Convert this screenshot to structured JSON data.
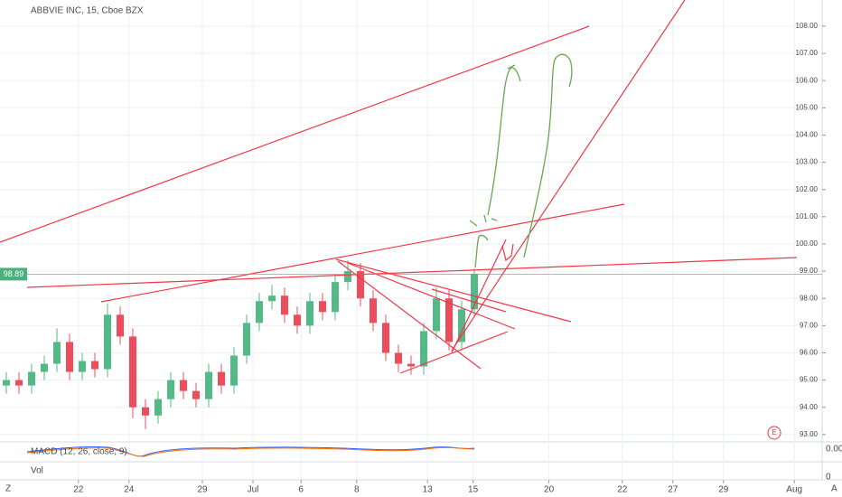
{
  "chart_data": {
    "type": "candlestick",
    "title": "ABBVIE INC, 15, Cboe BZX",
    "x": [
      0.25,
      0.75,
      1.25,
      1.75,
      2.25,
      2.75,
      3.25,
      3.75,
      4.25,
      4.75,
      5.25,
      5.75,
      6.25,
      6.75,
      7.25,
      7.75,
      8.25,
      8.75,
      9.25,
      9.75,
      10.25,
      10.75,
      11.25,
      11.75,
      12.25,
      12.75,
      13.25,
      13.75,
      14.25,
      14.75,
      15.25,
      15.75,
      16.25,
      16.75,
      17.25,
      17.75,
      18.25,
      18.75
    ],
    "open": [
      94.8,
      95.0,
      94.8,
      95.3,
      95.6,
      96.4,
      95.3,
      95.7,
      95.4,
      97.4,
      96.6,
      94.0,
      93.7,
      94.3,
      95.0,
      94.6,
      94.3,
      95.3,
      94.8,
      95.9,
      97.1,
      97.9,
      98.1,
      97.4,
      97.0,
      97.9,
      97.5,
      98.6,
      99.0,
      98.0,
      97.1,
      96.0,
      95.6,
      95.5,
      96.8,
      98.0,
      96.4,
      97.6
    ],
    "high": [
      95.3,
      95.3,
      95.6,
      95.9,
      96.9,
      96.7,
      96.0,
      96.0,
      97.8,
      97.7,
      96.9,
      94.3,
      94.6,
      95.3,
      95.3,
      94.9,
      95.6,
      95.6,
      96.2,
      97.4,
      98.2,
      98.5,
      98.4,
      97.7,
      98.2,
      98.2,
      98.9,
      99.4,
      99.3,
      98.3,
      97.4,
      96.3,
      95.9,
      97.1,
      98.4,
      98.3,
      97.9,
      99.1
    ],
    "low": [
      94.5,
      94.5,
      94.5,
      95.0,
      95.3,
      95.0,
      95.0,
      95.1,
      95.1,
      96.3,
      93.6,
      93.2,
      93.4,
      94.0,
      94.3,
      94.0,
      94.0,
      94.5,
      94.5,
      95.6,
      96.8,
      97.6,
      97.1,
      96.7,
      96.7,
      97.2,
      97.2,
      98.3,
      97.7,
      96.8,
      95.7,
      95.3,
      95.2,
      95.2,
      96.5,
      96.1,
      96.1,
      97.3
    ],
    "close": [
      95.0,
      94.8,
      95.3,
      95.6,
      96.4,
      95.3,
      95.7,
      95.4,
      97.4,
      96.6,
      94.0,
      93.7,
      94.3,
      95.0,
      94.6,
      94.3,
      95.3,
      94.8,
      95.9,
      97.1,
      97.9,
      98.1,
      97.4,
      97.0,
      97.9,
      97.5,
      98.6,
      99.0,
      98.0,
      97.1,
      96.0,
      95.6,
      95.5,
      96.8,
      98.0,
      96.4,
      97.6,
      98.9
    ],
    "up_color": "#53b987",
    "down_color": "#eb4d5c",
    "last_price": {
      "value": 98.89,
      "label": "98.89"
    },
    "last_price_color": "#4caf7d",
    "ylim": [
      92.73,
      108.96
    ],
    "yticks": [
      {
        "value": 93,
        "label": "93.00"
      },
      {
        "value": 94,
        "label": "94.00"
      },
      {
        "value": 95,
        "label": "95.00"
      },
      {
        "value": 96,
        "label": "96.00"
      },
      {
        "value": 97,
        "label": "97.00"
      },
      {
        "value": 98,
        "label": "98.00"
      },
      {
        "value": 99,
        "label": "99.00"
      },
      {
        "value": 100,
        "label": "100.00"
      },
      {
        "value": 101,
        "label": "101.00"
      },
      {
        "value": 102,
        "label": "102.00"
      },
      {
        "value": 103,
        "label": "103.00"
      },
      {
        "value": 104,
        "label": "104.00"
      },
      {
        "value": 105,
        "label": "105.00"
      },
      {
        "value": 106,
        "label": "106.00"
      },
      {
        "value": 107,
        "label": "107.00"
      },
      {
        "value": 108,
        "label": "108.00"
      }
    ],
    "xlim": [
      0,
      32.5
    ],
    "xticks": [
      {
        "value": 3.1,
        "label": "22"
      },
      {
        "value": 5.1,
        "label": "24"
      },
      {
        "value": 8.0,
        "label": "29"
      },
      {
        "value": 10.0,
        "label": "Jul"
      },
      {
        "value": 11.9,
        "label": "6"
      },
      {
        "value": 14.1,
        "label": "8"
      },
      {
        "value": 16.9,
        "label": "13"
      },
      {
        "value": 18.7,
        "label": "15"
      },
      {
        "value": 21.7,
        "label": "20"
      },
      {
        "value": 24.6,
        "label": "22"
      },
      {
        "value": 26.6,
        "label": "27"
      },
      {
        "value": 28.6,
        "label": "29"
      },
      {
        "value": 31.4,
        "label": "Aug"
      }
    ],
    "grid": true,
    "macd_label": "MACD (12, 26, close, 9)",
    "macd_axis_label": "0.00",
    "vol_label": "Vol",
    "vol_axis_label": "0",
    "earnings_marker": "E",
    "corner_left": "Z",
    "corner_right": "A"
  }
}
